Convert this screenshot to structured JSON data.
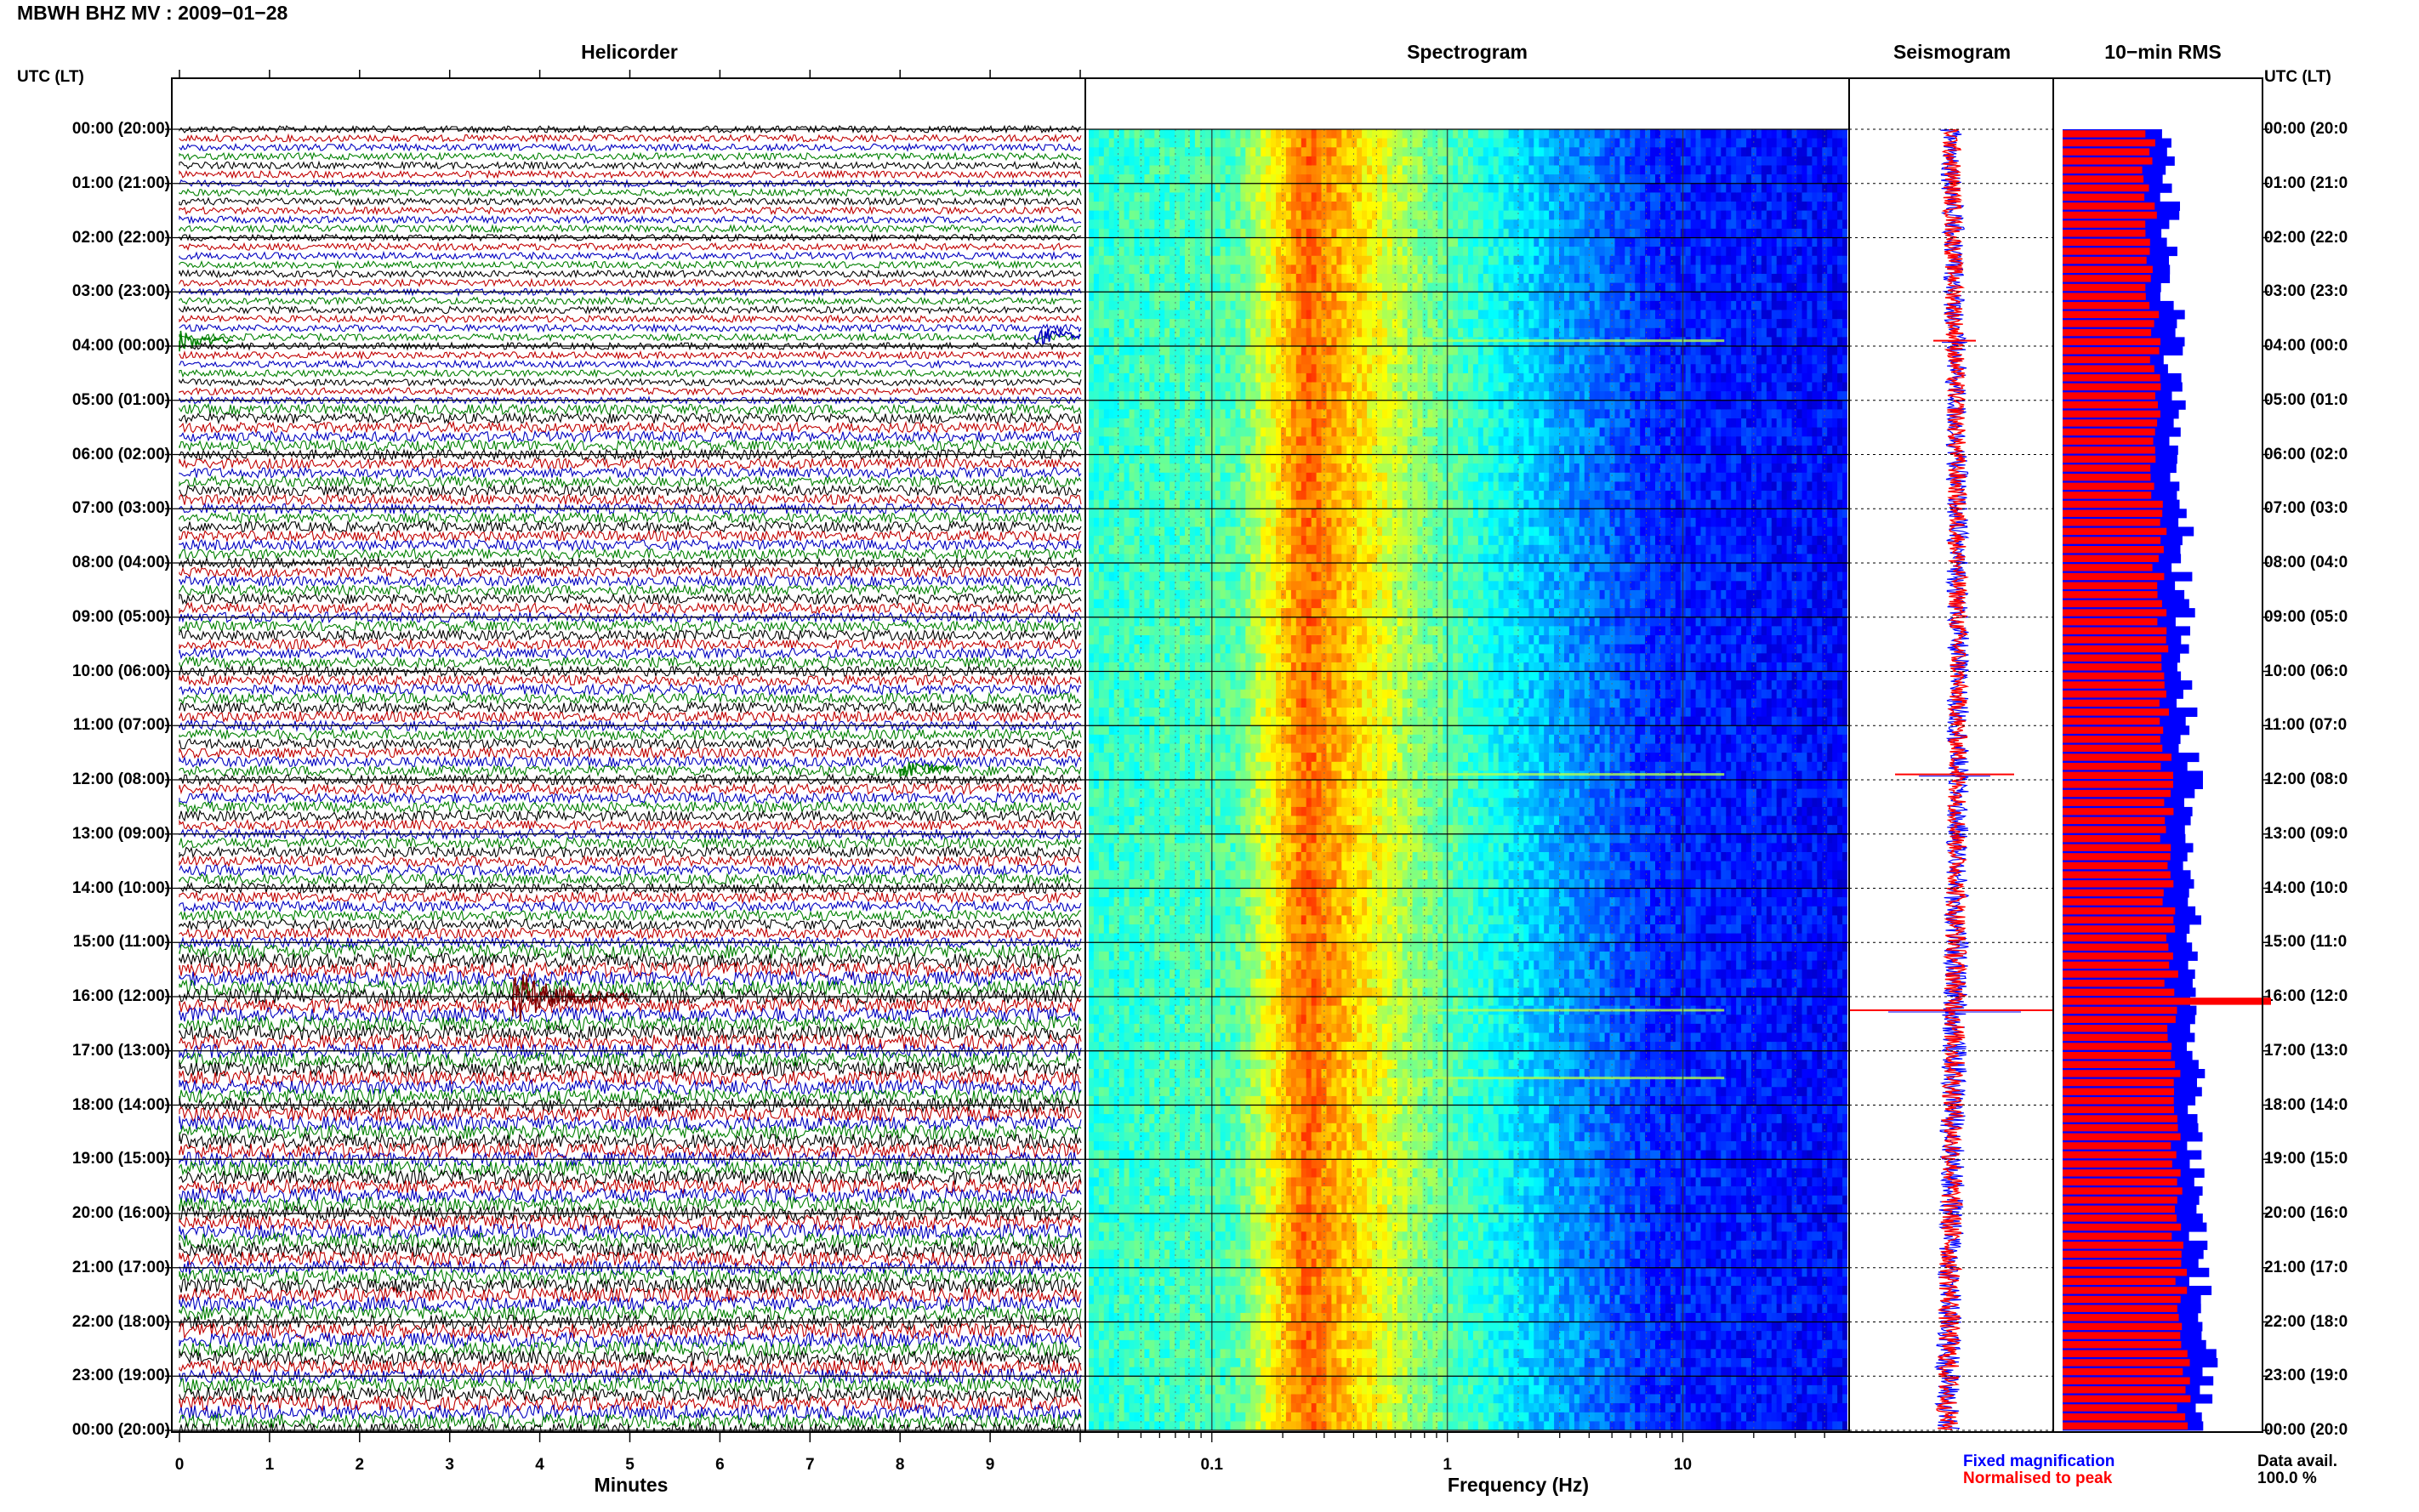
{
  "title": "MBWH BHZ MV : 2009−01−28",
  "corner_label_left": "UTC (LT)",
  "corner_label_right": "UTC (LT)",
  "panels": {
    "helicorder": "Helicorder",
    "spectrogram": "Spectrogram",
    "seismogram": "Seismogram",
    "rms": "10−min RMS"
  },
  "hour_labels": [
    "00:00 (20:00)",
    "01:00 (21:00)",
    "02:00 (22:00)",
    "03:00 (23:00)",
    "04:00 (00:00)",
    "05:00 (01:00)",
    "06:00 (02:00)",
    "07:00 (03:00)",
    "08:00 (04:00)",
    "09:00 (05:00)",
    "10:00 (06:00)",
    "11:00 (07:00)",
    "12:00 (08:00)",
    "13:00 (09:00)",
    "14:00 (10:00)",
    "15:00 (11:00)",
    "16:00 (12:00)",
    "17:00 (13:00)",
    "18:00 (14:00)",
    "19:00 (15:00)",
    "20:00 (16:00)",
    "21:00 (17:00)",
    "22:00 (18:00)",
    "23:00 (19:00)",
    "00:00 (20:00)"
  ],
  "hour_labels_right": [
    "00:00 (20:0",
    "01:00 (21:0",
    "02:00 (22:0",
    "03:00 (23:0",
    "04:00 (00:0",
    "05:00 (01:0",
    "06:00 (02:0",
    "07:00 (03:0",
    "08:00 (04:0",
    "09:00 (05:0",
    "10:00 (06:0",
    "11:00 (07:0",
    "12:00 (08:0",
    "13:00 (09:0",
    "14:00 (10:0",
    "15:00 (11:0",
    "16:00 (12:0",
    "17:00 (13:0",
    "18:00 (14:0",
    "19:00 (15:0",
    "20:00 (16:0",
    "21:00 (17:0",
    "22:00 (18:0",
    "23:00 (19:0",
    "00:00 (20:0"
  ],
  "legend": {
    "fixed": "Fixed magnification",
    "fixed_color": "#0000ff",
    "normalised": "Normalised to peak",
    "normalised_color": "#ff0000"
  },
  "data_availability": {
    "label": "Data avail.",
    "value": "100.0 %"
  },
  "chart_data": [
    {
      "type": "line",
      "name": "helicorder",
      "xlabel": "Minutes",
      "xticks": [
        "0",
        "1",
        "2",
        "3",
        "4",
        "5",
        "6",
        "7",
        "8",
        "9"
      ],
      "xlim": [
        0,
        10
      ],
      "trace_colors": [
        "#000000",
        "#c00000",
        "#0000c0",
        "#008000"
      ],
      "traces_per_hour": 6,
      "events": [
        {
          "hour": 3.9,
          "minute": 0.0,
          "duration": 0.6,
          "color": "#008000"
        },
        {
          "hour": 3.8,
          "minute": 9.5,
          "duration": 0.5,
          "color": "#0000c0"
        },
        {
          "hour": 11.8,
          "minute": 8.0,
          "duration": 0.6,
          "color": "#008000"
        },
        {
          "hour": 16.0,
          "minute": 3.7,
          "duration": 1.3,
          "color": "#800000"
        }
      ]
    },
    {
      "type": "heatmap",
      "name": "spectrogram",
      "xlabel": "Frequency (Hz)",
      "xscale": "log",
      "xlim": [
        0.03,
        50
      ],
      "xticks": [
        "0.1",
        "1",
        "10"
      ],
      "colormap": "jet",
      "ylim_hours": [
        0,
        24
      ]
    },
    {
      "type": "line",
      "name": "seismogram",
      "orientation": "vertical",
      "fixed_color": "#0000ff",
      "normalised_color": "#ff0000",
      "spikes_hours": [
        3.9,
        11.9,
        16.25
      ]
    },
    {
      "type": "bar",
      "name": "10-min RMS",
      "orientation": "horizontal",
      "bins_per_hour": 6,
      "fixed_color": "#0000ff",
      "normalised_color": "#ff0000",
      "peak_hour": 16.0
    }
  ]
}
